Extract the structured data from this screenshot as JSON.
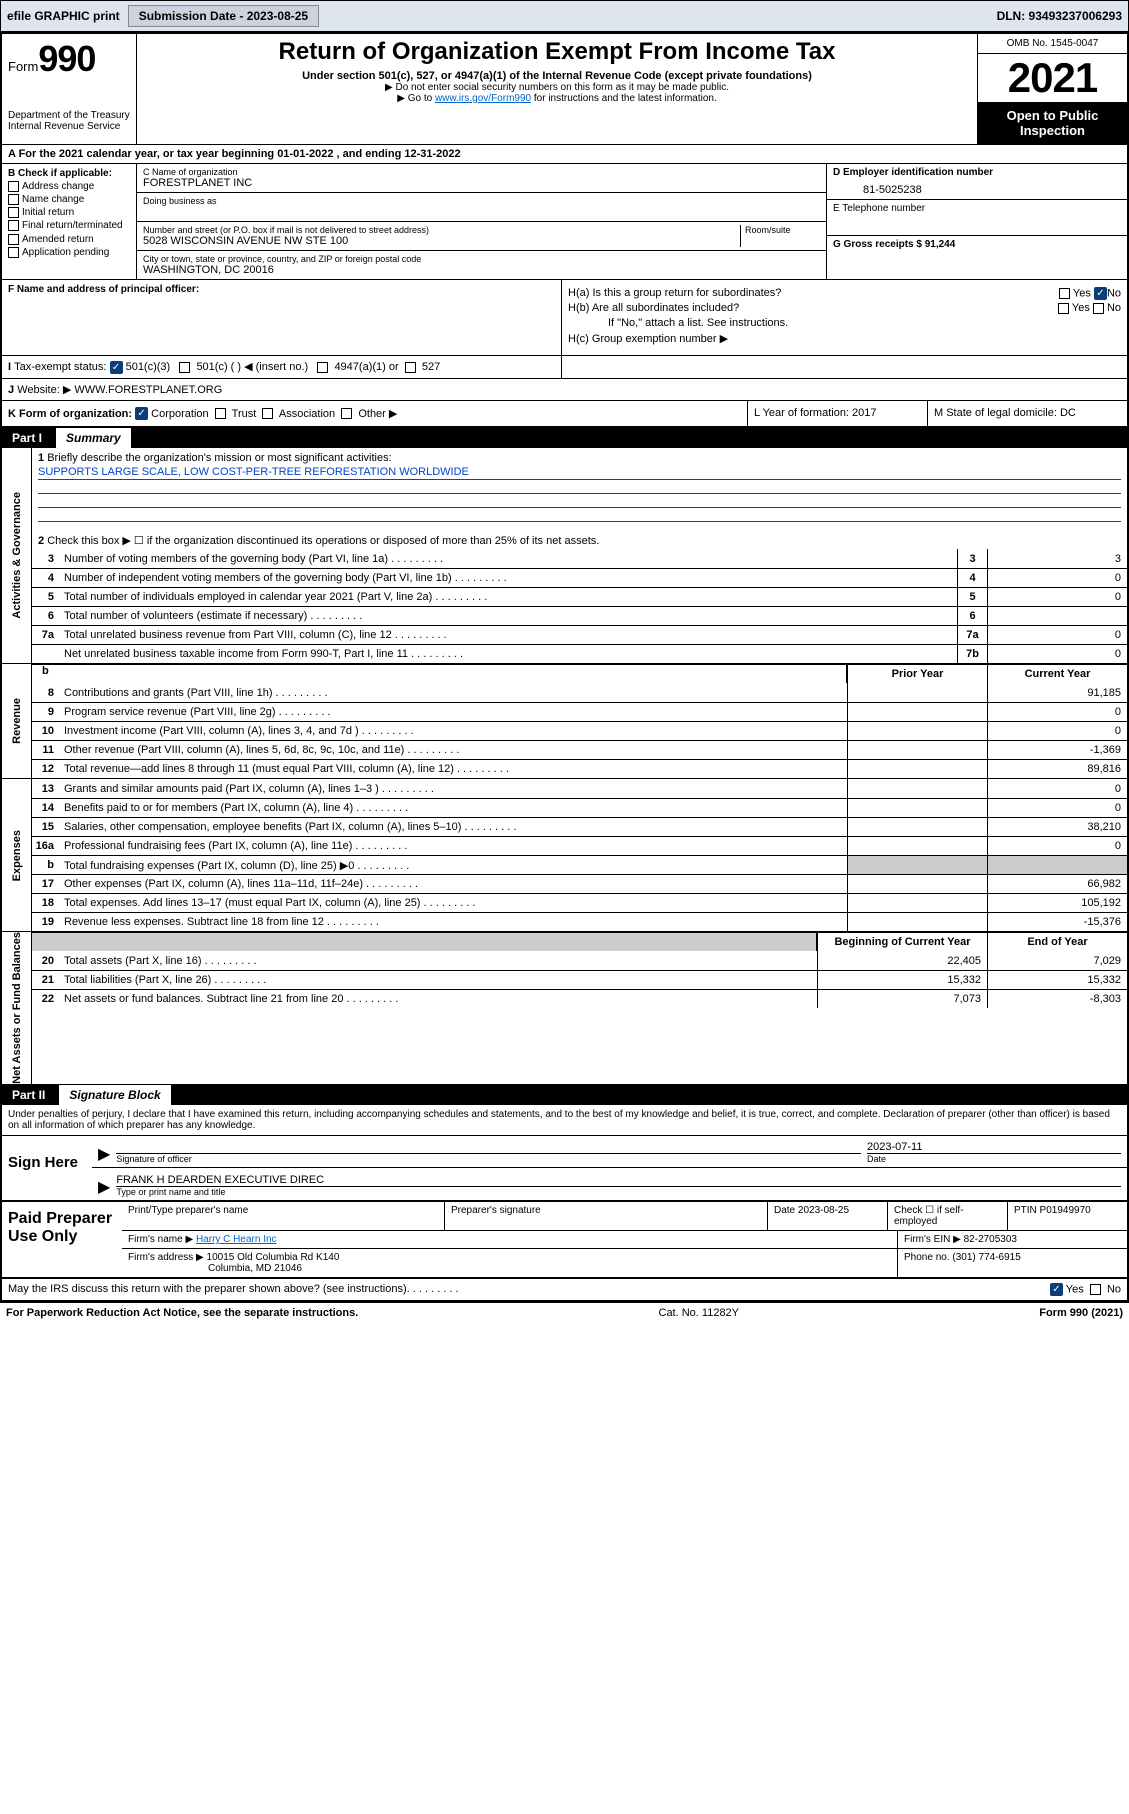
{
  "toolbar": {
    "efile": "efile GRAPHIC print",
    "sub_label": "Submission Date - 2023-08-25",
    "dln": "DLN: 93493237006293"
  },
  "header": {
    "form_label": "Form",
    "form_num": "990",
    "dept": "Department of the Treasury Internal Revenue Service",
    "title": "Return of Organization Exempt From Income Tax",
    "sub1": "Under section 501(c), 527, or 4947(a)(1) of the Internal Revenue Code (except private foundations)",
    "sub2": "▶ Do not enter social security numbers on this form as it may be made public.",
    "sub3_pre": "▶ Go to ",
    "sub3_link": "www.irs.gov/Form990",
    "sub3_post": " for instructions and the latest information.",
    "omb": "OMB No. 1545-0047",
    "year": "2021",
    "open": "Open to Public Inspection"
  },
  "row_a": "A For the 2021 calendar year, or tax year beginning 01-01-2022  , and ending 12-31-2022",
  "col_b": {
    "title": "B Check if applicable:",
    "items": [
      "Address change",
      "Name change",
      "Initial return",
      "Final return/terminated",
      "Amended return",
      "Application pending"
    ]
  },
  "col_c": {
    "c_lbl": "C Name of organization",
    "c_val": "FORESTPLANET INC",
    "dba_lbl": "Doing business as",
    "addr_lbl": "Number and street (or P.O. box if mail is not delivered to street address)",
    "room_lbl": "Room/suite",
    "addr_val": "5028 WISCONSIN AVENUE NW STE 100",
    "city_lbl": "City or town, state or province, country, and ZIP or foreign postal code",
    "city_val": "WASHINGTON, DC  20016"
  },
  "col_de": {
    "d_lbl": "D Employer identification number",
    "d_val": "81-5025238",
    "e_lbl": "E Telephone number",
    "g_lbl": "G Gross receipts $ 91,244"
  },
  "row_f": "F Name and address of principal officer:",
  "row_h": {
    "ha": "H(a)  Is this a group return for subordinates?",
    "hb": "H(b)  Are all subordinates included?",
    "hb_note": "If \"No,\" attach a list. See instructions.",
    "hc": "H(c)  Group exemption number ▶",
    "yes": "Yes",
    "no": "No"
  },
  "row_i": {
    "lbl": "Tax-exempt status:",
    "opts": [
      "501(c)(3)",
      "501(c) (  ) ◀ (insert no.)",
      "4947(a)(1) or",
      "527"
    ]
  },
  "row_j": {
    "lbl": "Website: ▶",
    "val": "WWW.FORESTPLANET.ORG"
  },
  "row_k": {
    "lbl": "K Form of organization:",
    "opts": [
      "Corporation",
      "Trust",
      "Association",
      "Other ▶"
    ],
    "l": "L Year of formation: 2017",
    "m": "M State of legal domicile: DC"
  },
  "part1": {
    "label": "Part I",
    "title": "Summary"
  },
  "summary": {
    "q1": "Briefly describe the organization's mission or most significant activities:",
    "q1_ans": "SUPPORTS LARGE SCALE, LOW COST-PER-TREE REFORESTATION WORLDWIDE",
    "q2": "Check this box ▶ ☐ if the organization discontinued its operations or disposed of more than 25% of its net assets.",
    "lines_gov": [
      {
        "n": "3",
        "t": "Number of voting members of the governing body (Part VI, line 1a)",
        "box": "3",
        "v": "3"
      },
      {
        "n": "4",
        "t": "Number of independent voting members of the governing body (Part VI, line 1b)",
        "box": "4",
        "v": "0"
      },
      {
        "n": "5",
        "t": "Total number of individuals employed in calendar year 2021 (Part V, line 2a)",
        "box": "5",
        "v": "0"
      },
      {
        "n": "6",
        "t": "Total number of volunteers (estimate if necessary)",
        "box": "6",
        "v": ""
      },
      {
        "n": "7a",
        "t": "Total unrelated business revenue from Part VIII, column (C), line 12",
        "box": "7a",
        "v": "0"
      },
      {
        "n": "",
        "t": "Net unrelated business taxable income from Form 990-T, Part I, line 11",
        "box": "7b",
        "v": "0"
      }
    ],
    "hdr_prior": "Prior Year",
    "hdr_curr": "Current Year",
    "lines_rev": [
      {
        "n": "8",
        "t": "Contributions and grants (Part VIII, line 1h)",
        "p": "",
        "c": "91,185"
      },
      {
        "n": "9",
        "t": "Program service revenue (Part VIII, line 2g)",
        "p": "",
        "c": "0"
      },
      {
        "n": "10",
        "t": "Investment income (Part VIII, column (A), lines 3, 4, and 7d )",
        "p": "",
        "c": "0"
      },
      {
        "n": "11",
        "t": "Other revenue (Part VIII, column (A), lines 5, 6d, 8c, 9c, 10c, and 11e)",
        "p": "",
        "c": "-1,369"
      },
      {
        "n": "12",
        "t": "Total revenue—add lines 8 through 11 (must equal Part VIII, column (A), line 12)",
        "p": "",
        "c": "89,816"
      }
    ],
    "lines_exp": [
      {
        "n": "13",
        "t": "Grants and similar amounts paid (Part IX, column (A), lines 1–3 )",
        "p": "",
        "c": "0"
      },
      {
        "n": "14",
        "t": "Benefits paid to or for members (Part IX, column (A), line 4)",
        "p": "",
        "c": "0"
      },
      {
        "n": "15",
        "t": "Salaries, other compensation, employee benefits (Part IX, column (A), lines 5–10)",
        "p": "",
        "c": "38,210"
      },
      {
        "n": "16a",
        "t": "Professional fundraising fees (Part IX, column (A), line 11e)",
        "p": "",
        "c": "0"
      },
      {
        "n": "b",
        "t": "Total fundraising expenses (Part IX, column (D), line 25) ▶0",
        "p": "gray",
        "c": "gray"
      },
      {
        "n": "17",
        "t": "Other expenses (Part IX, column (A), lines 11a–11d, 11f–24e)",
        "p": "",
        "c": "66,982"
      },
      {
        "n": "18",
        "t": "Total expenses. Add lines 13–17 (must equal Part IX, column (A), line 25)",
        "p": "",
        "c": "105,192"
      },
      {
        "n": "19",
        "t": "Revenue less expenses. Subtract line 18 from line 12",
        "p": "",
        "c": "-15,376"
      }
    ],
    "hdr_beg": "Beginning of Current Year",
    "hdr_end": "End of Year",
    "lines_net": [
      {
        "n": "20",
        "t": "Total assets (Part X, line 16)",
        "p": "22,405",
        "c": "7,029"
      },
      {
        "n": "21",
        "t": "Total liabilities (Part X, line 26)",
        "p": "15,332",
        "c": "15,332"
      },
      {
        "n": "22",
        "t": "Net assets or fund balances. Subtract line 21 from line 20",
        "p": "7,073",
        "c": "-8,303"
      }
    ],
    "tab_gov": "Activities & Governance",
    "tab_rev": "Revenue",
    "tab_exp": "Expenses",
    "tab_net": "Net Assets or Fund Balances"
  },
  "part2": {
    "label": "Part II",
    "title": "Signature Block"
  },
  "sig_decl": "Under penalties of perjury, I declare that I have examined this return, including accompanying schedules and statements, and to the best of my knowledge and belief, it is true, correct, and complete. Declaration of preparer (other than officer) is based on all information of which preparer has any knowledge.",
  "sign": {
    "here": "Sign Here",
    "sig_lbl": "Signature of officer",
    "date_lbl": "Date",
    "date_val": "2023-07-11",
    "name_val": "FRANK H DEARDEN  EXECUTIVE DIREC",
    "name_lbl": "Type or print name and title"
  },
  "prep": {
    "title": "Paid Preparer Use Only",
    "r1": [
      "Print/Type preparer's name",
      "Preparer's signature",
      "Date 2023-08-25",
      "Check ☐ if self-employed",
      "PTIN P01949970"
    ],
    "firm_lbl": "Firm's name    ▶",
    "firm_val": "Harry C Hearn Inc",
    "ein_lbl": "Firm's EIN ▶",
    "ein_val": "82-2705303",
    "addr_lbl": "Firm's address ▶",
    "addr_val1": "10015 Old Columbia Rd K140",
    "addr_val2": "Columbia, MD  21046",
    "phone_lbl": "Phone no.",
    "phone_val": "(301) 774-6915"
  },
  "footer": {
    "discuss": "May the IRS discuss this return with the preparer shown above? (see instructions)",
    "yes": "Yes",
    "no": "No",
    "paperwork": "For Paperwork Reduction Act Notice, see the separate instructions.",
    "cat": "Cat. No. 11282Y",
    "form": "Form 990 (2021)"
  }
}
